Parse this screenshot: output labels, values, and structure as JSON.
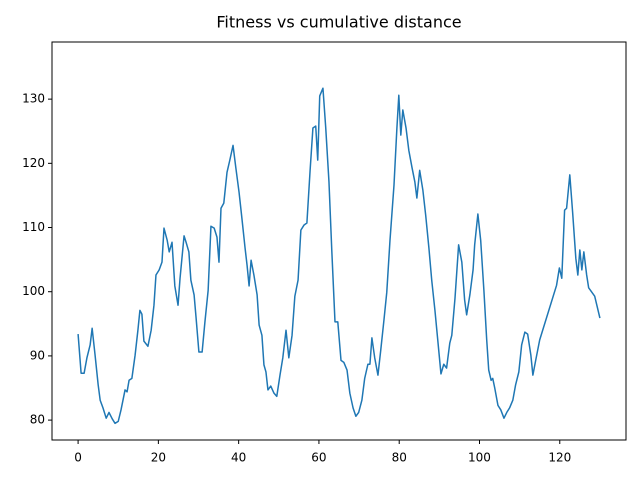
{
  "chart_data": {
    "type": "line",
    "title": "Fitness vs cumulative distance",
    "x": [
      0,
      0.75,
      1.5,
      2.2,
      3,
      3.5,
      4.2,
      5,
      5.5,
      6.2,
      7,
      7.7,
      8.5,
      9.2,
      10,
      10.7,
      11.7,
      12.2,
      12.7,
      13.4,
      14.2,
      14.9,
      15.4,
      15.9,
      16.4,
      17.4,
      18.2,
      18.9,
      19.4,
      20.2,
      20.9,
      21.4,
      22.2,
      22.7,
      23.4,
      24.1,
      24.9,
      25.4,
      26.4,
      26.9,
      27.6,
      28.1,
      28.9,
      29.4,
      30.1,
      30.9,
      31.6,
      32.4,
      33.1,
      33.9,
      34.6,
      35.1,
      35.6,
      36.3,
      37.1,
      37.8,
      38.6,
      39.3,
      40.1,
      40.8,
      41.6,
      42.1,
      42.6,
      43.1,
      43.8,
      44.6,
      45.1,
      45.8,
      46.3,
      46.8,
      47.3,
      48,
      48.8,
      49.5,
      50.3,
      51,
      51.8,
      52.5,
      53.3,
      54,
      54.8,
      55.5,
      56.3,
      57,
      57.8,
      58.5,
      59.2,
      59.7,
      60.2,
      61,
      61.7,
      62.5,
      63.2,
      64,
      64.7,
      65.5,
      66.2,
      67,
      67.7,
      68.5,
      69.2,
      69.9,
      70.7,
      71.4,
      72.2,
      72.7,
      73.2,
      73.9,
      74.7,
      75.4,
      76.2,
      76.9,
      77.7,
      78.7,
      79.4,
      79.9,
      80.4,
      80.9,
      81.7,
      82.4,
      83.2,
      83.9,
      84.4,
      85.1,
      85.9,
      86.6,
      87.4,
      88.1,
      88.9,
      89.6,
      90.4,
      91.1,
      91.8,
      92.6,
      93.1,
      93.9,
      94.8,
      95.6,
      96.3,
      96.8,
      97.6,
      98.4,
      98.8,
      99.6,
      100.3,
      101.1,
      101.8,
      102.3,
      102.9,
      103.3,
      103.8,
      104.6,
      105.3,
      106.1,
      106.8,
      107.5,
      108.3,
      109,
      109.8,
      110.5,
      111.3,
      112,
      112.8,
      113.3,
      114,
      115,
      119.2,
      119.9,
      120.5,
      121.2,
      121.7,
      122.5,
      123.2,
      124,
      124.5,
      125,
      125.5,
      126,
      126.7,
      127.2,
      128.7,
      130
    ],
    "series": [
      {
        "color": "#1f77b4",
        "values": [
          93.4,
          87.3,
          87.3,
          89.7,
          91.7,
          94.3,
          90.3,
          85.5,
          83.1,
          81.9,
          80.3,
          81.2,
          80.2,
          79.5,
          79.8,
          81.6,
          84.7,
          84.4,
          86.2,
          86.5,
          90.1,
          94,
          97.1,
          96.5,
          92.3,
          91.5,
          94,
          97.9,
          102.6,
          103.4,
          104.6,
          109.9,
          108,
          106.2,
          107.7,
          100.9,
          97.9,
          102.1,
          108.7,
          107.7,
          106.2,
          101.8,
          99.5,
          95.9,
          90.6,
          90.6,
          95.3,
          100.2,
          110.2,
          109.9,
          108.5,
          104.6,
          113,
          113.8,
          118.6,
          120.5,
          122.8,
          119.3,
          115.5,
          111.5,
          106.8,
          104.1,
          100.9,
          104.9,
          102.6,
          99.5,
          94.8,
          93.2,
          88.6,
          87.5,
          84.7,
          85.3,
          84.2,
          83.7,
          87,
          89.7,
          94,
          89.7,
          93.2,
          99.3,
          101.8,
          109.6,
          110.4,
          110.7,
          118.9,
          125.5,
          125.8,
          120.5,
          130.5,
          131.7,
          125.5,
          117.1,
          106.5,
          95.3,
          95.3,
          89.3,
          89,
          87.8,
          84.2,
          81.9,
          80.6,
          81.2,
          83.1,
          86.5,
          88.7,
          88.7,
          92.8,
          89.7,
          87,
          90.9,
          95.6,
          99.9,
          108,
          116.6,
          125.2,
          130.6,
          124.4,
          128.3,
          125.5,
          122,
          119.3,
          117.1,
          114.6,
          118.9,
          115.8,
          111.9,
          106.8,
          101.8,
          97.1,
          92.5,
          87.2,
          88.7,
          88.1,
          92,
          93.2,
          99,
          107.3,
          104.6,
          98.7,
          96.4,
          99.5,
          103.4,
          107.3,
          112.1,
          108,
          100.2,
          92.5,
          87.8,
          86.2,
          86.5,
          85,
          82.3,
          81.6,
          80.3,
          81.2,
          81.9,
          83.1,
          85.5,
          87.5,
          91.7,
          93.7,
          93.4,
          90.1,
          87,
          89.3,
          92.5,
          101,
          103.7,
          102.1,
          112.7,
          113,
          118.2,
          112.4,
          105.2,
          102.6,
          106.5,
          103.4,
          106.2,
          102.6,
          100.6,
          99.3,
          95.9
        ]
      }
    ],
    "xlim": [
      -6.5,
      136.5
    ],
    "xticks": [
      0,
      20,
      40,
      60,
      80,
      100,
      120
    ],
    "ylim": [
      76.9,
      138.9
    ],
    "yticks": [
      80,
      90,
      100,
      110,
      120,
      130
    ]
  }
}
